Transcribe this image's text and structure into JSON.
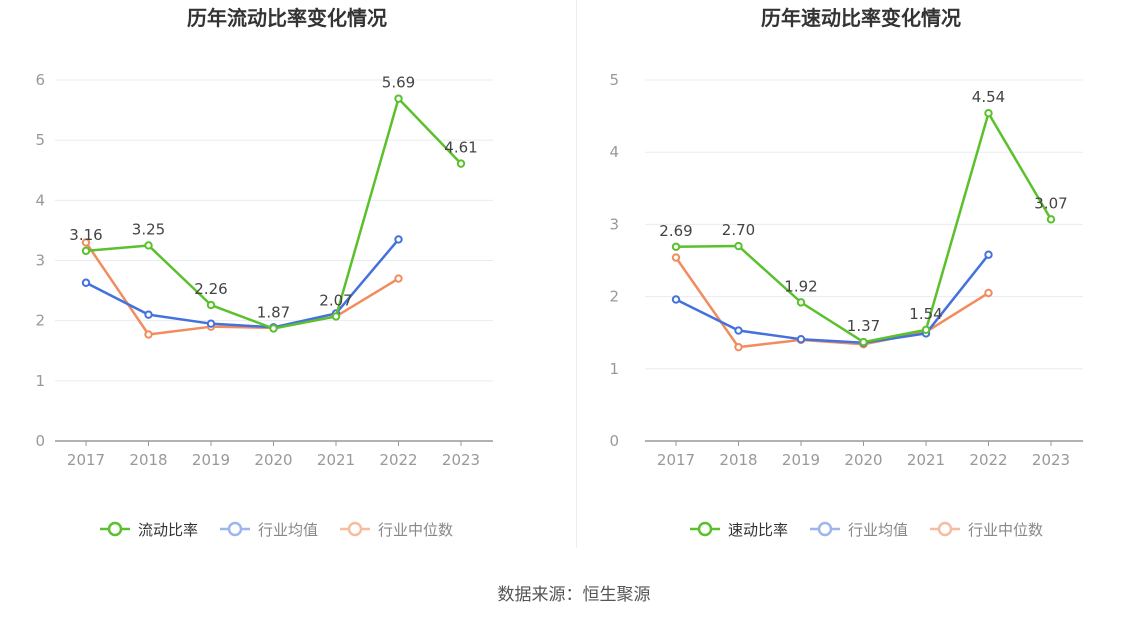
{
  "colors": {
    "series": [
      "#5ac12d",
      "#4472dc",
      "#f28c5e"
    ],
    "legend_inactive": [
      "#5ac12d",
      "#9db6ee",
      "#f7bda3"
    ],
    "axis": "#999999",
    "grid": "#e8ebf2",
    "label": "#444444"
  },
  "source": "数据来源：恒生聚源",
  "chart_data": [
    {
      "type": "line",
      "title": "历年流动比率变化情况",
      "categories": [
        "2017",
        "2018",
        "2019",
        "2020",
        "2021",
        "2022",
        "2023"
      ],
      "ylim": [
        0,
        6
      ],
      "yticks": [
        0,
        1,
        2,
        3,
        4,
        5,
        6
      ],
      "grid": true,
      "legend_position": "bottom-center",
      "series": [
        {
          "name": "流动比率",
          "values": [
            3.16,
            3.25,
            2.26,
            1.87,
            2.07,
            5.69,
            4.61
          ],
          "labels": [
            "3.16",
            "3.25",
            "2.26",
            "1.87",
            "2.07",
            "5.69",
            "4.61"
          ]
        },
        {
          "name": "行业均值",
          "values": [
            2.63,
            2.1,
            1.95,
            1.89,
            2.12,
            3.35,
            null
          ]
        },
        {
          "name": "行业中位数",
          "values": [
            3.3,
            1.77,
            1.9,
            1.88,
            2.07,
            2.7,
            null
          ]
        }
      ]
    },
    {
      "type": "line",
      "title": "历年速动比率变化情况",
      "categories": [
        "2017",
        "2018",
        "2019",
        "2020",
        "2021",
        "2022",
        "2023"
      ],
      "ylim": [
        0,
        5
      ],
      "yticks": [
        0,
        1,
        2,
        3,
        4,
        5
      ],
      "grid": true,
      "legend_position": "bottom-center",
      "series": [
        {
          "name": "速动比率",
          "values": [
            2.69,
            2.7,
            1.92,
            1.37,
            1.54,
            4.54,
            3.07
          ],
          "labels": [
            "2.69",
            "2.70",
            "1.92",
            "1.37",
            "1.54",
            "4.54",
            "3.07"
          ]
        },
        {
          "name": "行业均值",
          "values": [
            1.96,
            1.53,
            1.41,
            1.36,
            1.49,
            2.58,
            null
          ]
        },
        {
          "name": "行业中位数",
          "values": [
            2.54,
            1.3,
            1.4,
            1.34,
            1.51,
            2.05,
            null
          ]
        }
      ]
    }
  ]
}
